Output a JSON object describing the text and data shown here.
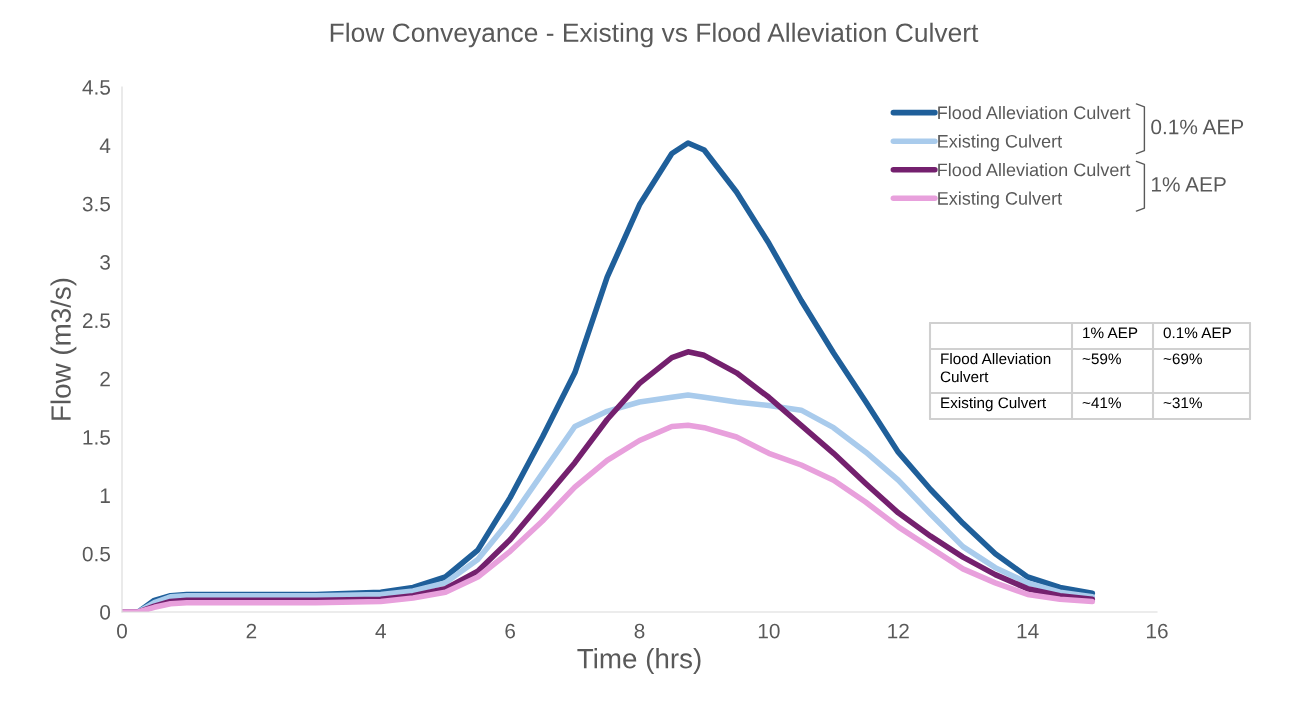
{
  "chart_data": {
    "type": "line",
    "title": "Flow Conveyance - Existing vs Flood Alleviation Culvert",
    "xlabel": "Time (hrs)",
    "ylabel": "Flow (m3/s)",
    "xlim": [
      0,
      16
    ],
    "xticks": [
      0,
      2,
      4,
      6,
      8,
      10,
      12,
      14,
      16
    ],
    "ylim": [
      0,
      4.5
    ],
    "yticks": [
      0,
      0.5,
      1,
      1.5,
      2,
      2.5,
      3,
      3.5,
      4,
      4.5
    ],
    "grid": false,
    "legend": "top right",
    "marker": "none",
    "line_style": "solid",
    "x": [
      0,
      0.25,
      0.5,
      0.75,
      1,
      2,
      3,
      4,
      4.5,
      5,
      5.5,
      6,
      6.5,
      7,
      7.5,
      8,
      8.5,
      8.75,
      9,
      9.5,
      10,
      10.5,
      11,
      11.5,
      12,
      12.5,
      13,
      13.5,
      14,
      14.5,
      15
    ],
    "series": [
      {
        "name": "Flood Alleviation Culvert",
        "color": "#1f5f9a",
        "values": [
          0,
          0,
          0.1,
          0.14,
          0.15,
          0.15,
          0.15,
          0.17,
          0.21,
          0.3,
          0.53,
          0.98,
          1.5,
          2.05,
          2.87,
          3.49,
          3.93,
          4.02,
          3.96,
          3.6,
          3.16,
          2.67,
          2.22,
          1.8,
          1.37,
          1.05,
          0.76,
          0.5,
          0.3,
          0.21,
          0.16
        ]
      },
      {
        "name": "Existing Culvert",
        "color": "#a9cbec",
        "values": [
          0,
          0,
          0.08,
          0.13,
          0.14,
          0.14,
          0.14,
          0.15,
          0.18,
          0.25,
          0.45,
          0.79,
          1.19,
          1.59,
          1.72,
          1.8,
          1.84,
          1.86,
          1.84,
          1.8,
          1.77,
          1.73,
          1.58,
          1.37,
          1.13,
          0.84,
          0.56,
          0.38,
          0.25,
          0.17,
          0.13
        ]
      },
      {
        "name": "Flood Alleviation Culvert",
        "color": "#74206e",
        "values": [
          0,
          0,
          0.05,
          0.09,
          0.1,
          0.1,
          0.1,
          0.11,
          0.14,
          0.2,
          0.35,
          0.62,
          0.95,
          1.28,
          1.65,
          1.96,
          2.18,
          2.23,
          2.2,
          2.05,
          1.84,
          1.6,
          1.36,
          1.1,
          0.85,
          0.65,
          0.47,
          0.32,
          0.2,
          0.14,
          0.11
        ]
      },
      {
        "name": "Existing Culvert",
        "color": "#e8a0dc",
        "values": [
          0,
          0,
          0.04,
          0.07,
          0.08,
          0.08,
          0.08,
          0.09,
          0.12,
          0.17,
          0.3,
          0.52,
          0.78,
          1.07,
          1.3,
          1.47,
          1.59,
          1.6,
          1.58,
          1.5,
          1.36,
          1.26,
          1.13,
          0.94,
          0.73,
          0.55,
          0.37,
          0.25,
          0.15,
          0.11,
          0.09
        ]
      }
    ],
    "annotations": [
      "0.1% AEP",
      "1% AEP",
      "1% AEP",
      "0.1% AEP",
      "Flood Alleviation Culvert",
      "~59%",
      "~69%",
      "Existing Culvert",
      "~41%",
      "~31%"
    ]
  }
}
